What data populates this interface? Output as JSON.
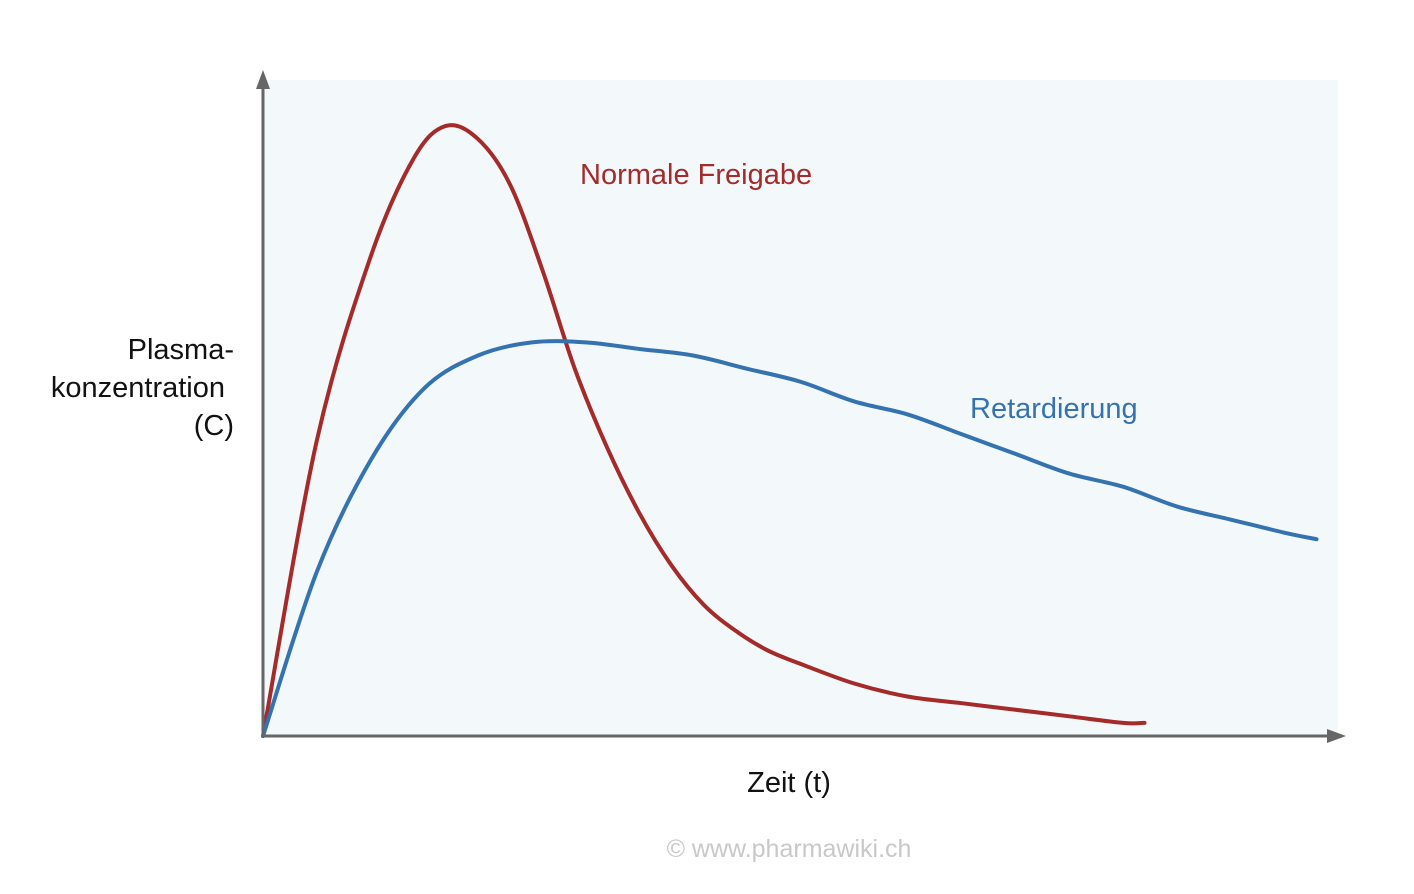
{
  "chart_data": {
    "type": "line",
    "title": "",
    "xlabel": "Zeit (t)",
    "ylabel_lines": [
      "Plasma-",
      "konzentration",
      "(C)"
    ],
    "xlim": [
      0,
      100
    ],
    "ylim": [
      0,
      100
    ],
    "grid": false,
    "axis_ticks": false,
    "series": [
      {
        "name": "Normale Freigabe",
        "color": "#a52a2a",
        "label_placement": "near peak, right",
        "x": [
          0,
          5,
          10,
          14,
          17,
          20,
          23,
          26,
          29,
          32,
          35,
          38,
          41,
          44,
          47,
          50,
          55,
          60,
          65,
          70,
          75,
          80,
          82
        ],
        "y": [
          0,
          45,
          73,
          88,
          93,
          91,
          84,
          71,
          56,
          44,
          34,
          26,
          20,
          16,
          13,
          11,
          8,
          6,
          5,
          4,
          3,
          2,
          2
        ]
      },
      {
        "name": "Retardierung",
        "color": "#3572b0",
        "label_placement": "right, above curve",
        "x": [
          0,
          5,
          10,
          15,
          20,
          25,
          30,
          35,
          40,
          45,
          50,
          55,
          60,
          65,
          70,
          75,
          80,
          85,
          90,
          95,
          98
        ],
        "y": [
          0,
          25,
          42,
          53,
          58,
          60,
          60,
          59,
          58,
          56,
          54,
          51,
          49,
          46,
          43,
          40,
          38,
          35,
          33,
          31,
          30
        ]
      }
    ]
  },
  "copyright": "© www.pharmawiki.ch",
  "colors": {
    "plot_background": "#f3f8fb",
    "axis": "#666666",
    "text": "#111111",
    "copyright": "#c8c8c8"
  }
}
